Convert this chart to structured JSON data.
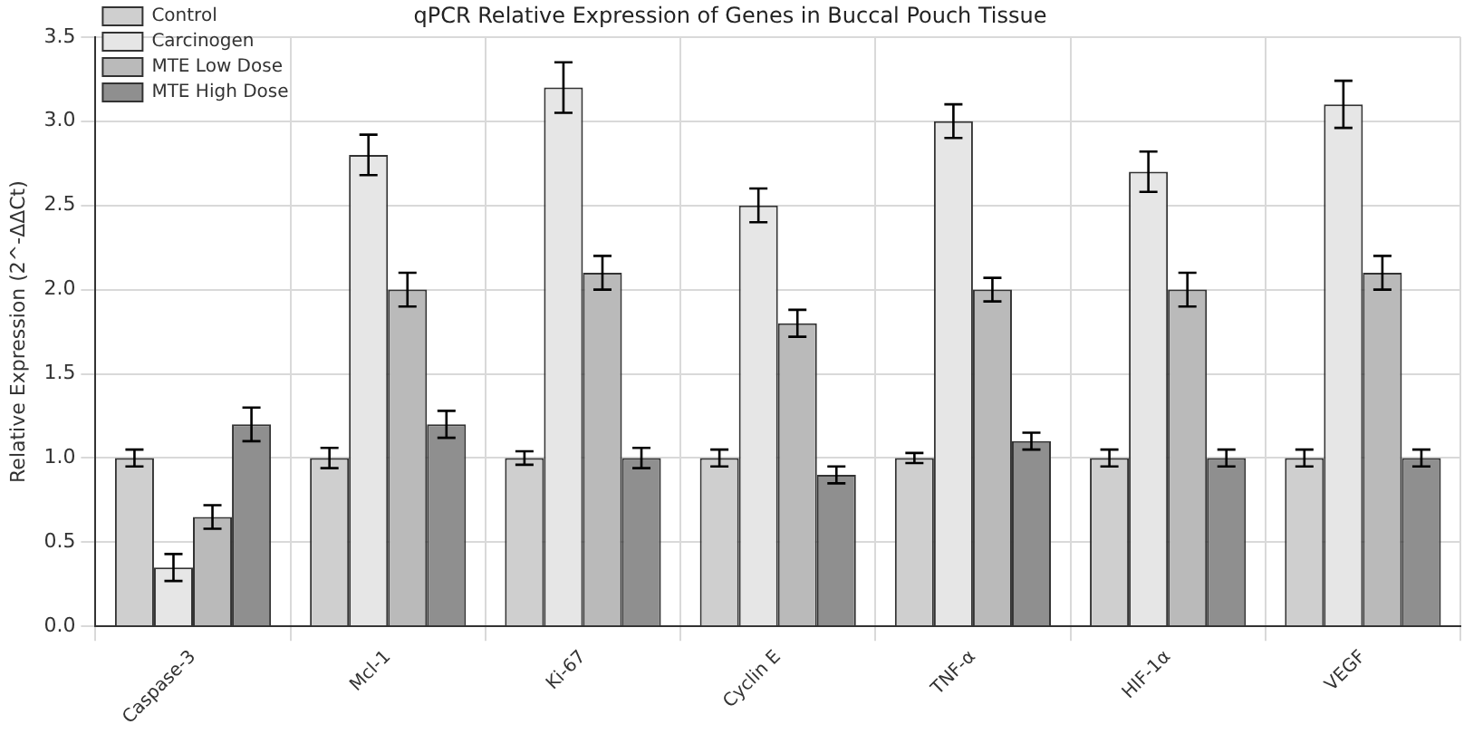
{
  "chart_data": {
    "type": "bar",
    "title": "qPCR Relative Expression of Genes in Buccal Pouch Tissue",
    "ylabel": "Relative Expression (2^-ΔΔCt)",
    "categories": [
      "Caspase-3",
      "Mcl-1",
      "Ki-67",
      "Cyclin E",
      "TNF-α",
      "HIF-1α",
      "VEGF"
    ],
    "series": [
      {
        "name": "Control",
        "color": "#cfcfcf",
        "values": [
          1.0,
          1.0,
          1.0,
          1.0,
          1.0,
          1.0,
          1.0
        ],
        "errors": [
          0.05,
          0.06,
          0.04,
          0.05,
          0.03,
          0.05,
          0.05
        ]
      },
      {
        "name": "Carcinogen",
        "color": "#e6e6e6",
        "values": [
          0.35,
          2.8,
          3.2,
          2.5,
          3.0,
          2.7,
          3.1
        ],
        "errors": [
          0.08,
          0.12,
          0.15,
          0.1,
          0.1,
          0.12,
          0.14
        ]
      },
      {
        "name": "MTE Low Dose",
        "color": "#bababa",
        "values": [
          0.65,
          2.0,
          2.1,
          1.8,
          2.0,
          2.0,
          2.1
        ],
        "errors": [
          0.07,
          0.1,
          0.1,
          0.08,
          0.07,
          0.1,
          0.1
        ]
      },
      {
        "name": "MTE High Dose",
        "color": "#8f8f8f",
        "values": [
          1.2,
          1.2,
          1.0,
          0.9,
          1.1,
          1.0,
          1.0
        ],
        "errors": [
          0.1,
          0.08,
          0.06,
          0.05,
          0.05,
          0.05,
          0.05
        ]
      }
    ],
    "ylim": [
      0,
      3.5
    ],
    "yticks": [
      {
        "value": 0,
        "label": "0.0"
      },
      {
        "value": 0.5,
        "label": "0.5"
      },
      {
        "value": 1,
        "label": "1.0"
      },
      {
        "value": 1.5,
        "label": "1.5"
      },
      {
        "value": 2,
        "label": "2.0"
      },
      {
        "value": 2.5,
        "label": "2.5"
      },
      {
        "value": 3,
        "label": "3.0"
      },
      {
        "value": 3.5,
        "label": "3.5"
      }
    ],
    "grid": true,
    "legend": "top left"
  }
}
